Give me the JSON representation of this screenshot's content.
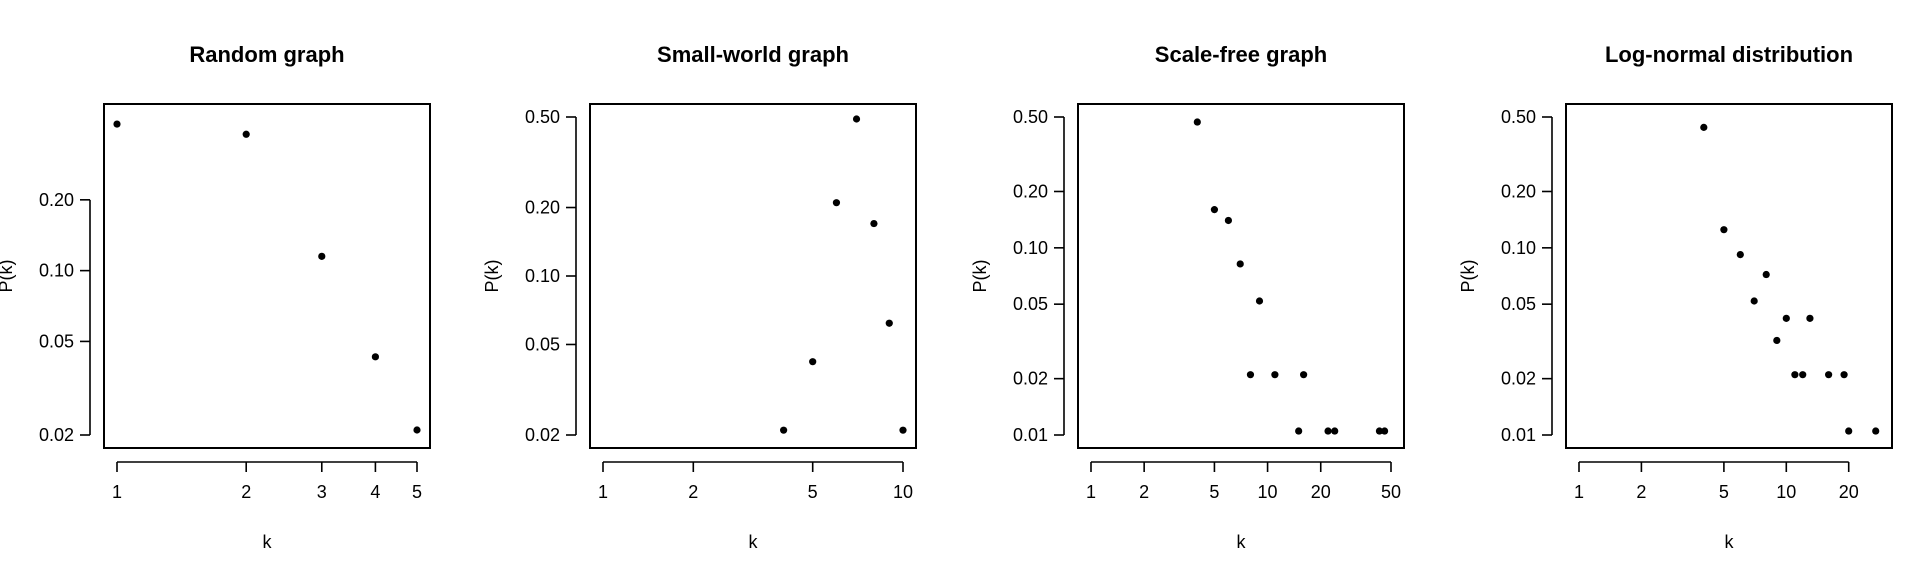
{
  "chart_data": [
    {
      "type": "scatter",
      "title": "Random graph",
      "xlabel": "k",
      "ylabel": "P(k)",
      "log_x": true,
      "log_y": true,
      "xlim": [
        1,
        5
      ],
      "ylim": [
        0.02,
        0.45
      ],
      "x_ticks": [
        1,
        2,
        3,
        4,
        5
      ],
      "x_tick_labels": [
        "1",
        "2",
        "3",
        "4",
        "5"
      ],
      "y_ticks": [
        0.02,
        0.05,
        0.1,
        0.2
      ],
      "y_tick_labels": [
        "0.02",
        "0.05",
        "0.10",
        "0.20"
      ],
      "grid": false,
      "points": [
        {
          "x": 1,
          "y": 0.42
        },
        {
          "x": 2,
          "y": 0.38
        },
        {
          "x": 3,
          "y": 0.115
        },
        {
          "x": 4,
          "y": 0.043
        },
        {
          "x": 5,
          "y": 0.021
        }
      ]
    },
    {
      "type": "scatter",
      "title": "Small-world graph",
      "xlabel": "k",
      "ylabel": "P(k)",
      "log_x": true,
      "log_y": true,
      "xlim": [
        1,
        10
      ],
      "ylim": [
        0.02,
        0.5
      ],
      "x_ticks": [
        1,
        2,
        5,
        10
      ],
      "x_tick_labels": [
        "1",
        "2",
        "5",
        "10"
      ],
      "y_ticks": [
        0.02,
        0.05,
        0.1,
        0.2,
        0.5
      ],
      "y_tick_labels": [
        "0.02",
        "0.05",
        "0.10",
        "0.20",
        "0.50"
      ],
      "grid": false,
      "points": [
        {
          "x": 4,
          "y": 0.021
        },
        {
          "x": 5,
          "y": 0.042
        },
        {
          "x": 6,
          "y": 0.21
        },
        {
          "x": 7,
          "y": 0.49
        },
        {
          "x": 8,
          "y": 0.17
        },
        {
          "x": 9,
          "y": 0.062
        },
        {
          "x": 10,
          "y": 0.021
        }
      ]
    },
    {
      "type": "scatter",
      "title": "Scale-free graph",
      "xlabel": "k",
      "ylabel": "P(k)",
      "log_x": true,
      "log_y": true,
      "xlim": [
        1,
        50
      ],
      "ylim": [
        0.01,
        0.5
      ],
      "x_ticks": [
        1,
        2,
        5,
        10,
        20,
        50
      ],
      "x_tick_labels": [
        "1",
        "2",
        "5",
        "10",
        "20",
        "50"
      ],
      "y_ticks": [
        0.01,
        0.02,
        0.05,
        0.1,
        0.2,
        0.5
      ],
      "y_tick_labels": [
        "0.01",
        "0.02",
        "0.05",
        "0.10",
        "0.20",
        "0.50"
      ],
      "grid": false,
      "points": [
        {
          "x": 4,
          "y": 0.47
        },
        {
          "x": 5,
          "y": 0.16
        },
        {
          "x": 6,
          "y": 0.14
        },
        {
          "x": 7,
          "y": 0.082
        },
        {
          "x": 9,
          "y": 0.052
        },
        {
          "x": 8,
          "y": 0.021
        },
        {
          "x": 11,
          "y": 0.021
        },
        {
          "x": 16,
          "y": 0.021
        },
        {
          "x": 15,
          "y": 0.0105
        },
        {
          "x": 22,
          "y": 0.0105
        },
        {
          "x": 24,
          "y": 0.0105
        },
        {
          "x": 43,
          "y": 0.0105
        },
        {
          "x": 46,
          "y": 0.0105
        }
      ]
    },
    {
      "type": "scatter",
      "title": "Log-normal distribution",
      "xlabel": "k",
      "ylabel": "P(k)",
      "log_x": true,
      "log_y": true,
      "xlim": [
        1,
        28
      ],
      "ylim": [
        0.01,
        0.5
      ],
      "x_ticks": [
        1,
        2,
        5,
        10,
        20
      ],
      "x_tick_labels": [
        "1",
        "2",
        "5",
        "10",
        "20"
      ],
      "y_ticks": [
        0.01,
        0.02,
        0.05,
        0.1,
        0.2,
        0.5
      ],
      "y_tick_labels": [
        "0.01",
        "0.02",
        "0.05",
        "0.10",
        "0.20",
        "0.50"
      ],
      "grid": false,
      "points": [
        {
          "x": 4,
          "y": 0.44
        },
        {
          "x": 5,
          "y": 0.125
        },
        {
          "x": 6,
          "y": 0.092
        },
        {
          "x": 7,
          "y": 0.052
        },
        {
          "x": 8,
          "y": 0.072
        },
        {
          "x": 9,
          "y": 0.032
        },
        {
          "x": 10,
          "y": 0.042
        },
        {
          "x": 11,
          "y": 0.021
        },
        {
          "x": 12,
          "y": 0.021
        },
        {
          "x": 13,
          "y": 0.042
        },
        {
          "x": 16,
          "y": 0.021
        },
        {
          "x": 19,
          "y": 0.021
        },
        {
          "x": 20,
          "y": 0.0105
        },
        {
          "x": 27,
          "y": 0.0105
        }
      ]
    }
  ]
}
